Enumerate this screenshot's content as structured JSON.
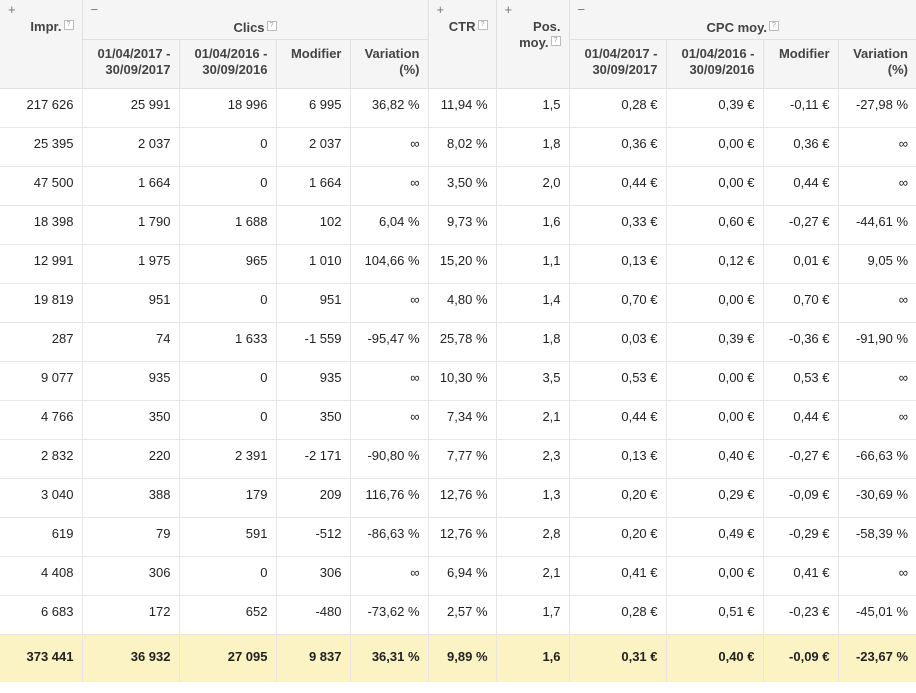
{
  "header": {
    "impr": "Impr.",
    "clics_group": "Clics",
    "ctr": "CTR",
    "pos_line1": "Pos.",
    "pos_line2": "moy.",
    "cpc_group": "CPC moy.",
    "period_a_line1": "01/04/2017 -",
    "period_a_line2": "30/09/2017",
    "period_b_line1": "01/04/2016 -",
    "period_b_line2": "30/09/2016",
    "modifier": "Modifier",
    "variation_line1": "Variation",
    "variation_line2": "(%)",
    "plus": "+",
    "minus": "−",
    "help": "?"
  },
  "rows": [
    [
      "217 626",
      "25 991",
      "18 996",
      "6 995",
      "36,82 %",
      "11,94 %",
      "1,5",
      "0,28 €",
      "0,39 €",
      "-0,11 €",
      "-27,98 %"
    ],
    [
      "25 395",
      "2 037",
      "0",
      "2 037",
      "∞",
      "8,02 %",
      "1,8",
      "0,36 €",
      "0,00 €",
      "0,36 €",
      "∞"
    ],
    [
      "47 500",
      "1 664",
      "0",
      "1 664",
      "∞",
      "3,50 %",
      "2,0",
      "0,44 €",
      "0,00 €",
      "0,44 €",
      "∞"
    ],
    [
      "18 398",
      "1 790",
      "1 688",
      "102",
      "6,04 %",
      "9,73 %",
      "1,6",
      "0,33 €",
      "0,60 €",
      "-0,27 €",
      "-44,61 %"
    ],
    [
      "12 991",
      "1 975",
      "965",
      "1 010",
      "104,66 %",
      "15,20 %",
      "1,1",
      "0,13 €",
      "0,12 €",
      "0,01 €",
      "9,05 %"
    ],
    [
      "19 819",
      "951",
      "0",
      "951",
      "∞",
      "4,80 %",
      "1,4",
      "0,70 €",
      "0,00 €",
      "0,70 €",
      "∞"
    ],
    [
      "287",
      "74",
      "1 633",
      "-1 559",
      "-95,47 %",
      "25,78 %",
      "1,8",
      "0,03 €",
      "0,39 €",
      "-0,36 €",
      "-91,90 %"
    ],
    [
      "9 077",
      "935",
      "0",
      "935",
      "∞",
      "10,30 %",
      "3,5",
      "0,53 €",
      "0,00 €",
      "0,53 €",
      "∞"
    ],
    [
      "4 766",
      "350",
      "0",
      "350",
      "∞",
      "7,34 %",
      "2,1",
      "0,44 €",
      "0,00 €",
      "0,44 €",
      "∞"
    ],
    [
      "2 832",
      "220",
      "2 391",
      "-2 171",
      "-90,80 %",
      "7,77 %",
      "2,3",
      "0,13 €",
      "0,40 €",
      "-0,27 €",
      "-66,63 %"
    ],
    [
      "3 040",
      "388",
      "179",
      "209",
      "116,76 %",
      "12,76 %",
      "1,3",
      "0,20 €",
      "0,29 €",
      "-0,09 €",
      "-30,69 %"
    ],
    [
      "619",
      "79",
      "591",
      "-512",
      "-86,63 %",
      "12,76 %",
      "2,8",
      "0,20 €",
      "0,49 €",
      "-0,29 €",
      "-58,39 %"
    ],
    [
      "4 408",
      "306",
      "0",
      "306",
      "∞",
      "6,94 %",
      "2,1",
      "0,41 €",
      "0,00 €",
      "0,41 €",
      "∞"
    ],
    [
      "6 683",
      "172",
      "652",
      "-480",
      "-73,62 %",
      "2,57 %",
      "1,7",
      "0,28 €",
      "0,51 €",
      "-0,23 €",
      "-45,01 %"
    ]
  ],
  "total": [
    "373 441",
    "36 932",
    "27 095",
    "9 837",
    "36,31 %",
    "9,89 %",
    "1,6",
    "0,31 €",
    "0,40 €",
    "-0,09 €",
    "-23,67 %"
  ],
  "colors": {
    "header_bg": "#f5f5f5",
    "total_bg": "#fcf3c4",
    "border": "#e6e6e6"
  }
}
